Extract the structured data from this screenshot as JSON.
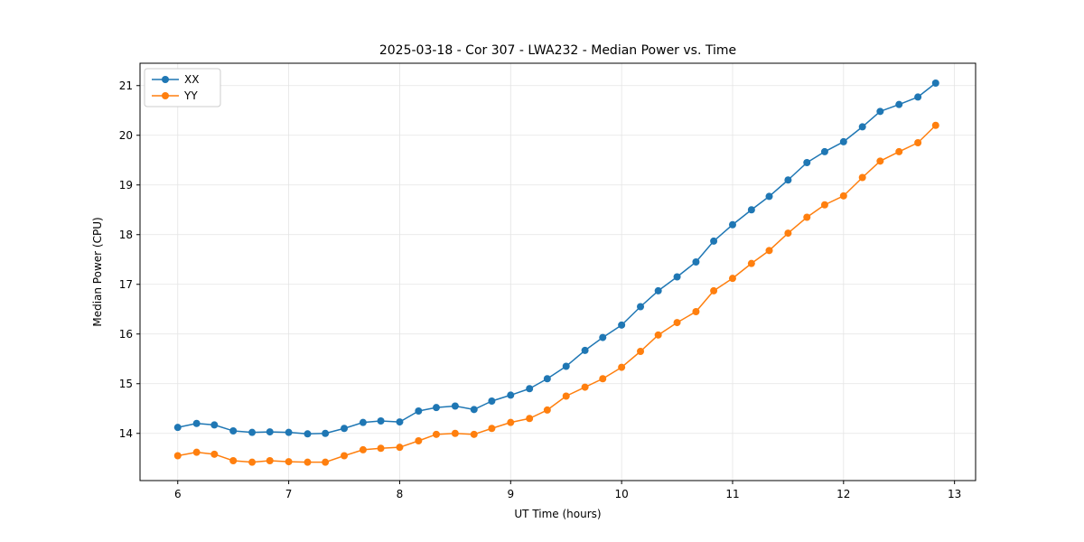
{
  "chart_data": {
    "type": "line",
    "title": "2025-03-18 - Cor 307 - LWA232 - Median Power vs. Time",
    "xlabel": "UT Time (hours)",
    "ylabel": "Median Power (CPU)",
    "xlim": [
      5.66,
      13.19
    ],
    "ylim": [
      13.05,
      21.45
    ],
    "x_ticks": [
      6,
      7,
      8,
      9,
      10,
      11,
      12,
      13
    ],
    "y_ticks": [
      14,
      15,
      16,
      17,
      18,
      19,
      20,
      21
    ],
    "grid": true,
    "legend_position": "upper left",
    "marker": "circle",
    "x": [
      6.0,
      6.17,
      6.33,
      6.5,
      6.67,
      6.83,
      7.0,
      7.17,
      7.33,
      7.5,
      7.67,
      7.83,
      8.0,
      8.17,
      8.33,
      8.5,
      8.67,
      8.83,
      9.0,
      9.17,
      9.33,
      9.5,
      9.67,
      9.83,
      10.0,
      10.17,
      10.33,
      10.5,
      10.67,
      10.83,
      11.0,
      11.17,
      11.33,
      11.5,
      11.67,
      11.83,
      12.0,
      12.17,
      12.33,
      12.5,
      12.67,
      12.83
    ],
    "series": [
      {
        "name": "XX",
        "color": "#1f77b4",
        "values": [
          14.12,
          14.2,
          14.17,
          14.05,
          14.02,
          14.03,
          14.02,
          13.99,
          14.0,
          14.1,
          14.22,
          14.25,
          14.23,
          14.45,
          14.52,
          14.55,
          14.48,
          14.65,
          14.77,
          14.9,
          15.1,
          15.35,
          15.67,
          15.93,
          16.18,
          16.55,
          16.87,
          17.15,
          17.45,
          17.87,
          18.2,
          18.5,
          18.77,
          19.1,
          19.45,
          19.67,
          19.87,
          20.17,
          20.48,
          20.62,
          20.77,
          21.05
        ]
      },
      {
        "name": "YY",
        "color": "#ff7f0e",
        "values": [
          13.55,
          13.62,
          13.58,
          13.45,
          13.42,
          13.45,
          13.43,
          13.42,
          13.42,
          13.55,
          13.67,
          13.7,
          13.72,
          13.85,
          13.98,
          14.0,
          13.98,
          14.1,
          14.22,
          14.3,
          14.47,
          14.75,
          14.93,
          15.1,
          15.33,
          15.65,
          15.98,
          16.23,
          16.45,
          16.87,
          17.12,
          17.42,
          17.68,
          18.03,
          18.35,
          18.6,
          18.78,
          19.15,
          19.48,
          19.67,
          19.85,
          20.2
        ]
      }
    ]
  }
}
